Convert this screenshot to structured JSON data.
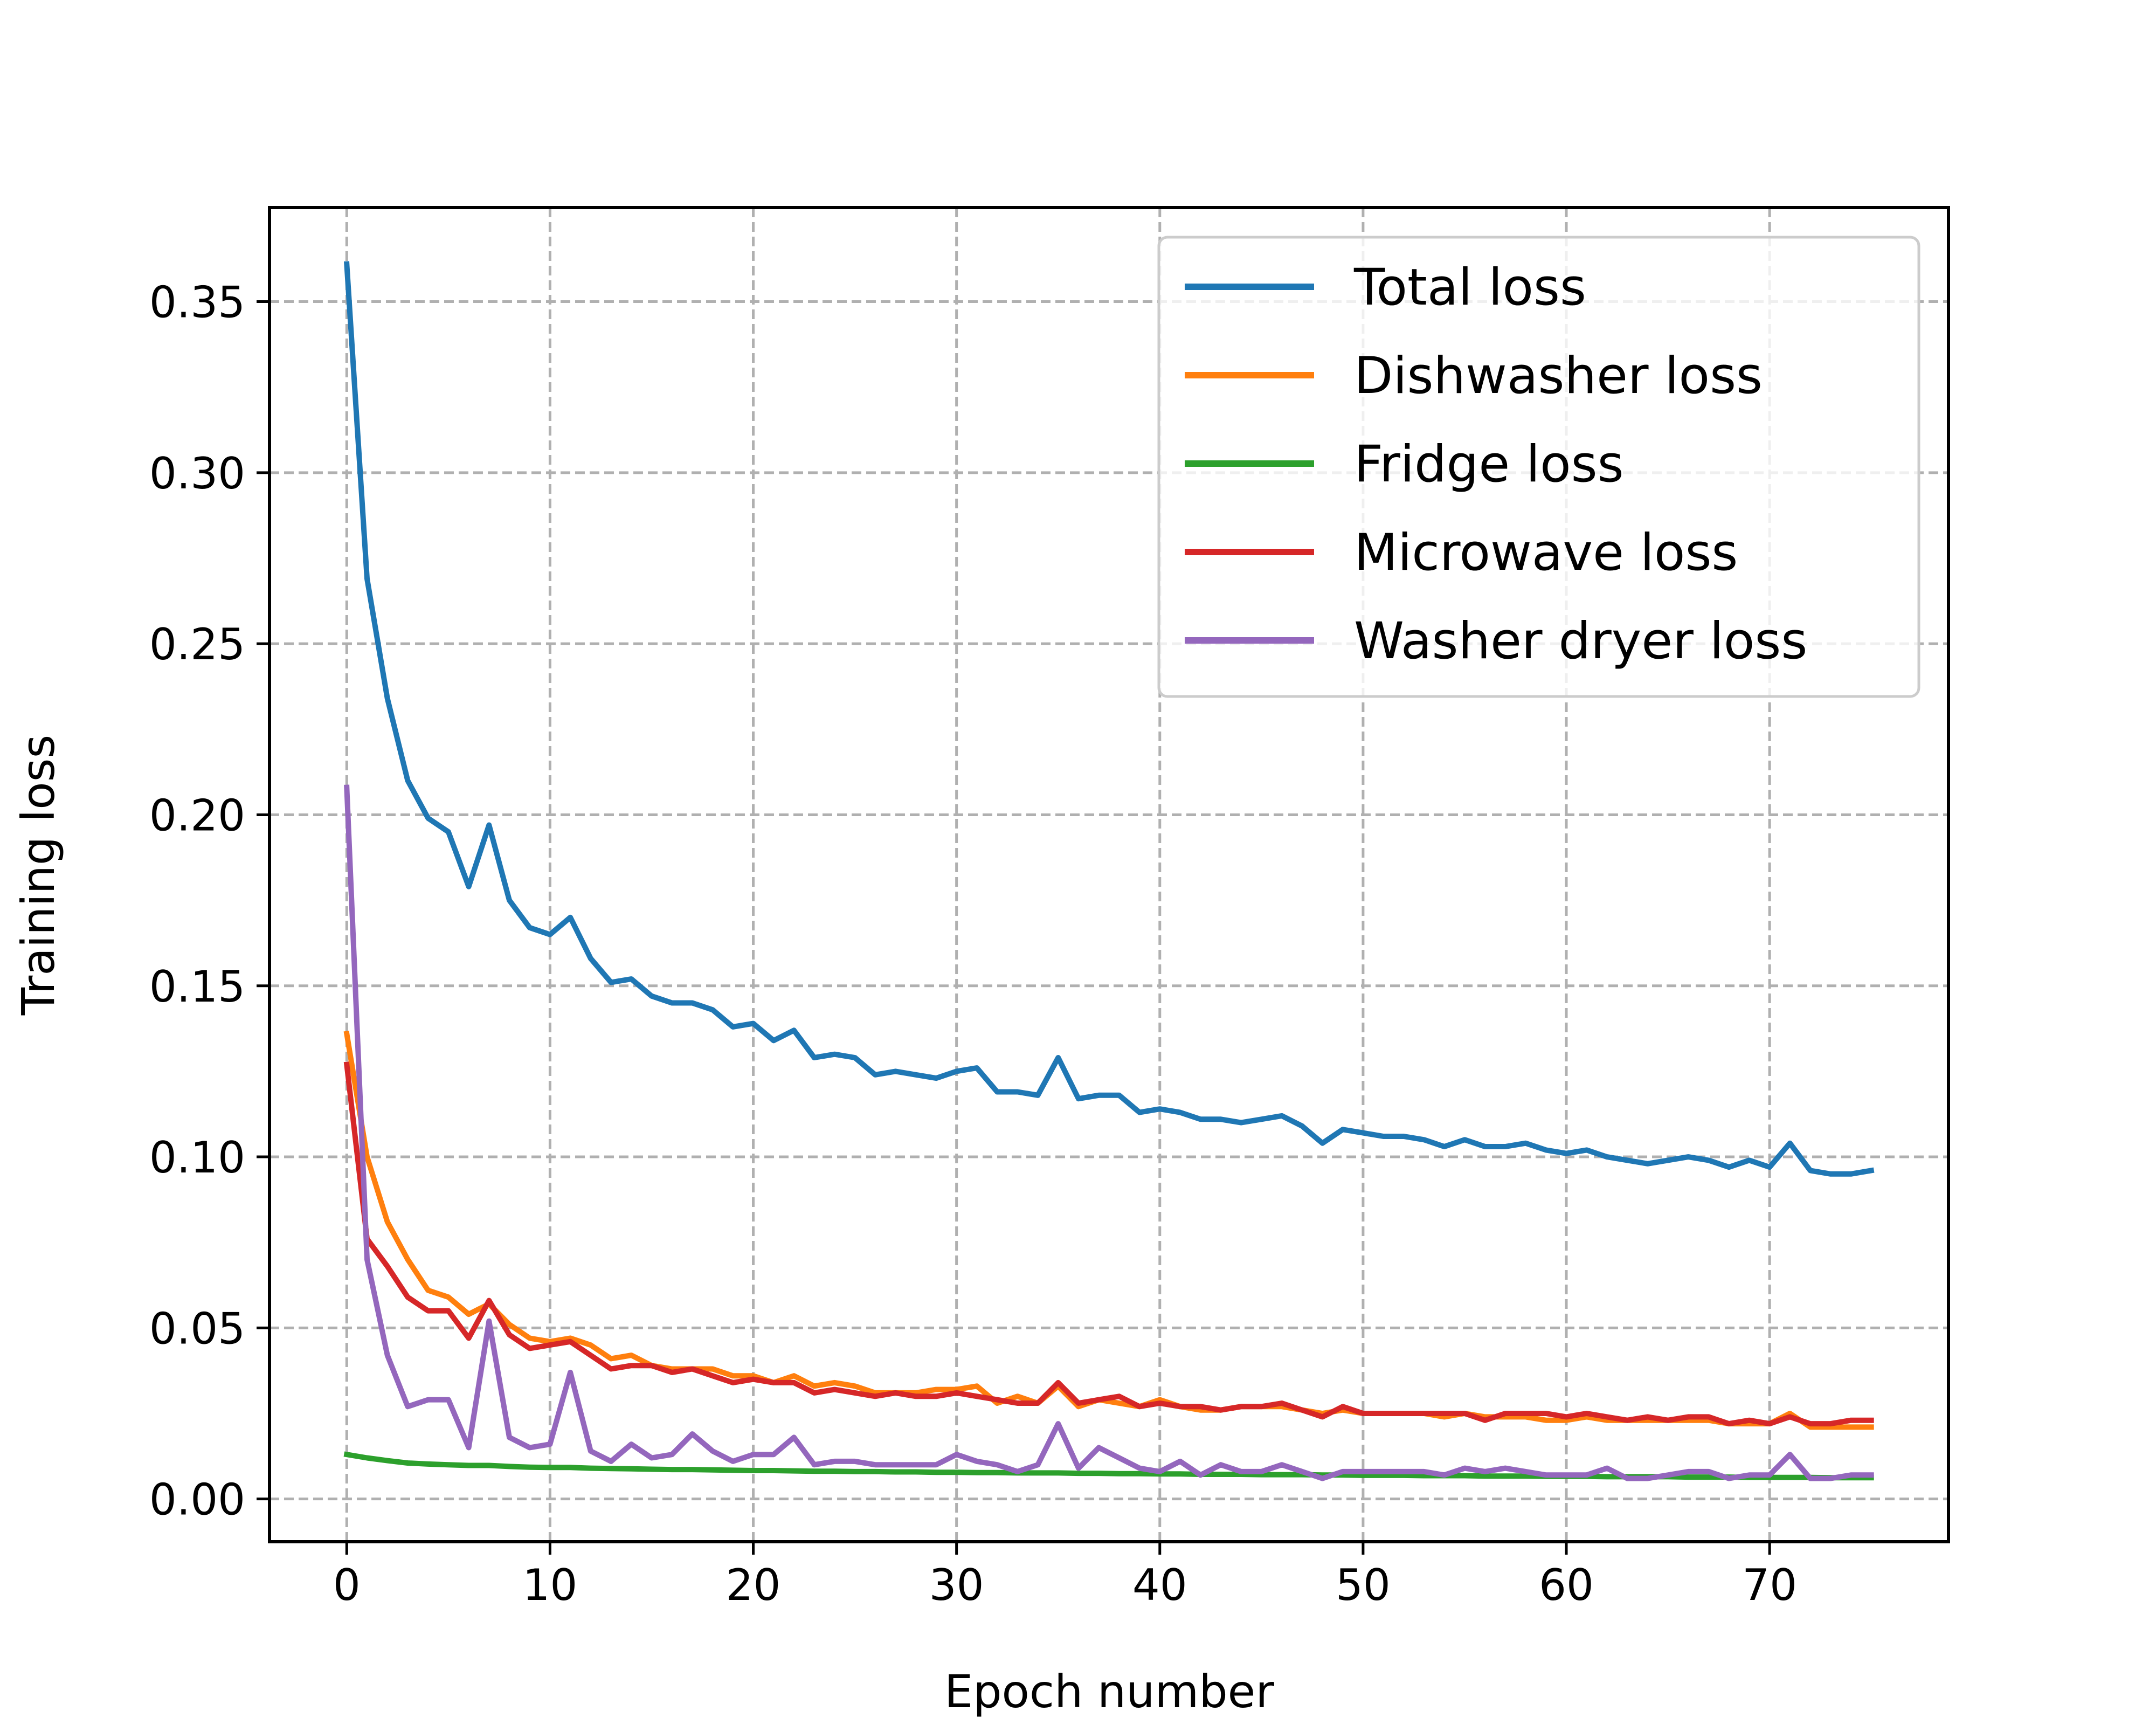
{
  "chart_data": {
    "type": "line",
    "title": "",
    "xlabel": "Epoch number",
    "ylabel": "Training loss",
    "xlim": [
      -3.8,
      78.8
    ],
    "ylim": [
      -0.0125,
      0.3775
    ],
    "xticks": [
      0,
      10,
      20,
      30,
      40,
      50,
      60,
      70
    ],
    "xtick_labels": [
      "0",
      "10",
      "20",
      "30",
      "40",
      "50",
      "60",
      "70"
    ],
    "yticks": [
      0.0,
      0.05,
      0.1,
      0.15,
      0.2,
      0.25,
      0.3,
      0.35
    ],
    "ytick_labels": [
      "0.00",
      "0.05",
      "0.10",
      "0.15",
      "0.20",
      "0.25",
      "0.30",
      "0.35"
    ],
    "grid": true,
    "legend_position": "top-right",
    "x": [
      0,
      1,
      2,
      3,
      4,
      5,
      6,
      7,
      8,
      9,
      10,
      11,
      12,
      13,
      14,
      15,
      16,
      17,
      18,
      19,
      20,
      21,
      22,
      23,
      24,
      25,
      26,
      27,
      28,
      29,
      30,
      31,
      32,
      33,
      34,
      35,
      36,
      37,
      38,
      39,
      40,
      41,
      42,
      43,
      44,
      45,
      46,
      47,
      48,
      49,
      50,
      51,
      52,
      53,
      54,
      55,
      56,
      57,
      58,
      59,
      60,
      61,
      62,
      63,
      64,
      65,
      66,
      67,
      68,
      69,
      70,
      71,
      72,
      73,
      74,
      75
    ],
    "series": [
      {
        "name": "Total loss",
        "color": "#1f77b4",
        "values": [
          0.361,
          0.269,
          0.234,
          0.21,
          0.199,
          0.195,
          0.179,
          0.197,
          0.175,
          0.167,
          0.165,
          0.17,
          0.158,
          0.151,
          0.152,
          0.147,
          0.145,
          0.145,
          0.143,
          0.138,
          0.139,
          0.134,
          0.137,
          0.129,
          0.13,
          0.129,
          0.124,
          0.125,
          0.124,
          0.123,
          0.125,
          0.126,
          0.119,
          0.119,
          0.118,
          0.129,
          0.117,
          0.118,
          0.118,
          0.113,
          0.114,
          0.113,
          0.111,
          0.111,
          0.11,
          0.111,
          0.112,
          0.109,
          0.104,
          0.108,
          0.107,
          0.106,
          0.106,
          0.105,
          0.103,
          0.105,
          0.103,
          0.103,
          0.104,
          0.102,
          0.101,
          0.102,
          0.1,
          0.099,
          0.098,
          0.099,
          0.1,
          0.099,
          0.097,
          0.099,
          0.097,
          0.104,
          0.096,
          0.095,
          0.095,
          0.096
        ]
      },
      {
        "name": "Dishwasher loss",
        "color": "#ff7f0e",
        "values": [
          0.136,
          0.1,
          0.081,
          0.07,
          0.061,
          0.059,
          0.054,
          0.057,
          0.051,
          0.047,
          0.046,
          0.047,
          0.045,
          0.041,
          0.042,
          0.039,
          0.038,
          0.038,
          0.038,
          0.036,
          0.036,
          0.034,
          0.036,
          0.033,
          0.034,
          0.033,
          0.031,
          0.031,
          0.031,
          0.032,
          0.032,
          0.033,
          0.028,
          0.03,
          0.028,
          0.033,
          0.027,
          0.029,
          0.028,
          0.027,
          0.029,
          0.027,
          0.026,
          0.026,
          0.027,
          0.027,
          0.027,
          0.026,
          0.025,
          0.026,
          0.025,
          0.025,
          0.025,
          0.025,
          0.024,
          0.025,
          0.024,
          0.024,
          0.024,
          0.023,
          0.023,
          0.024,
          0.023,
          0.023,
          0.023,
          0.023,
          0.023,
          0.023,
          0.022,
          0.022,
          0.022,
          0.025,
          0.021,
          0.021,
          0.021,
          0.021
        ]
      },
      {
        "name": "Fridge loss",
        "color": "#2ca02c",
        "values": [
          0.013,
          0.012,
          0.0112,
          0.0105,
          0.0102,
          0.01,
          0.0098,
          0.0098,
          0.0095,
          0.0093,
          0.0092,
          0.0092,
          0.009,
          0.0089,
          0.0088,
          0.0087,
          0.0086,
          0.0086,
          0.0085,
          0.0084,
          0.0083,
          0.0083,
          0.0082,
          0.0081,
          0.0081,
          0.008,
          0.008,
          0.0079,
          0.0079,
          0.0078,
          0.0078,
          0.0077,
          0.0077,
          0.0076,
          0.0076,
          0.0076,
          0.0075,
          0.0075,
          0.0074,
          0.0074,
          0.0073,
          0.0073,
          0.0072,
          0.0072,
          0.0072,
          0.0071,
          0.0071,
          0.0071,
          0.007,
          0.007,
          0.0069,
          0.0069,
          0.0069,
          0.0068,
          0.0068,
          0.0068,
          0.0067,
          0.0067,
          0.0067,
          0.0066,
          0.0066,
          0.0066,
          0.0065,
          0.0065,
          0.0065,
          0.0065,
          0.0064,
          0.0064,
          0.0064,
          0.0063,
          0.0063,
          0.0063,
          0.0063,
          0.0062,
          0.0062,
          0.0062
        ]
      },
      {
        "name": "Microwave loss",
        "color": "#d62728",
        "values": [
          0.127,
          0.076,
          0.068,
          0.059,
          0.055,
          0.055,
          0.047,
          0.058,
          0.048,
          0.044,
          0.045,
          0.046,
          0.042,
          0.038,
          0.039,
          0.039,
          0.037,
          0.038,
          0.036,
          0.034,
          0.035,
          0.034,
          0.034,
          0.031,
          0.032,
          0.031,
          0.03,
          0.031,
          0.03,
          0.03,
          0.031,
          0.03,
          0.029,
          0.028,
          0.028,
          0.034,
          0.028,
          0.029,
          0.03,
          0.027,
          0.028,
          0.027,
          0.027,
          0.026,
          0.027,
          0.027,
          0.028,
          0.026,
          0.024,
          0.027,
          0.025,
          0.025,
          0.025,
          0.025,
          0.025,
          0.025,
          0.023,
          0.025,
          0.025,
          0.025,
          0.024,
          0.025,
          0.024,
          0.023,
          0.024,
          0.023,
          0.024,
          0.024,
          0.022,
          0.023,
          0.022,
          0.024,
          0.022,
          0.022,
          0.023,
          0.023
        ]
      },
      {
        "name": "Washer dryer loss",
        "color": "#9467bd",
        "values": [
          0.208,
          0.07,
          0.042,
          0.027,
          0.029,
          0.029,
          0.015,
          0.052,
          0.018,
          0.015,
          0.016,
          0.037,
          0.014,
          0.011,
          0.016,
          0.012,
          0.013,
          0.019,
          0.014,
          0.011,
          0.013,
          0.013,
          0.018,
          0.01,
          0.011,
          0.011,
          0.01,
          0.01,
          0.01,
          0.01,
          0.013,
          0.011,
          0.01,
          0.008,
          0.01,
          0.022,
          0.009,
          0.015,
          0.012,
          0.009,
          0.008,
          0.011,
          0.007,
          0.01,
          0.008,
          0.008,
          0.01,
          0.008,
          0.006,
          0.008,
          0.008,
          0.008,
          0.008,
          0.008,
          0.007,
          0.009,
          0.008,
          0.009,
          0.008,
          0.007,
          0.007,
          0.007,
          0.009,
          0.006,
          0.006,
          0.007,
          0.008,
          0.008,
          0.006,
          0.007,
          0.007,
          0.013,
          0.006,
          0.006,
          0.007,
          0.007
        ]
      }
    ]
  }
}
